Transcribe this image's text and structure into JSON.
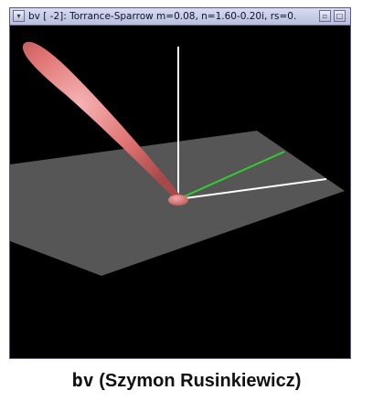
{
  "window": {
    "title": "bv [  -2]: Torrance-Sparrow  m=0.08, n=1.60-0.20i, rs=0.",
    "menu_icon": "window-menu-icon",
    "minimize_icon": "minimize-icon",
    "maximize_icon": "maximize-icon"
  },
  "scene": {
    "plane_color": "#555555",
    "lobe_color": "#e07070",
    "normal_axis_color": "#ffffff",
    "x_axis_color": "#ffffff",
    "y_axis_color": "#33cc33"
  },
  "caption": {
    "program": "bv",
    "author": " (Szymon Rusinkiewicz)"
  }
}
